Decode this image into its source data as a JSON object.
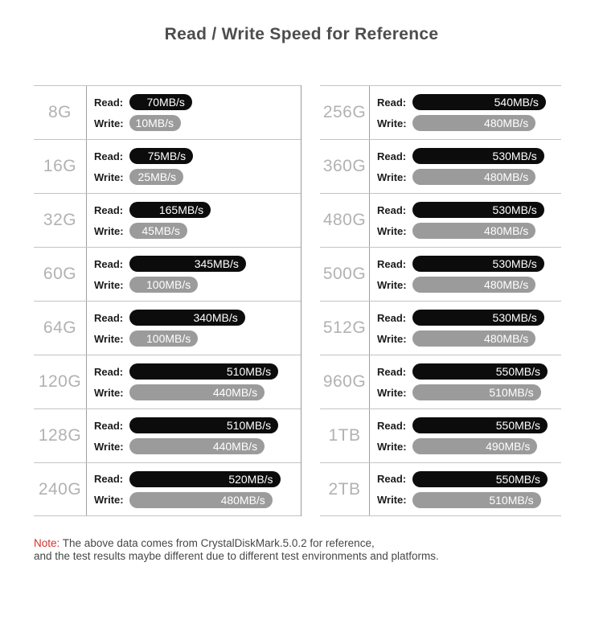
{
  "title": "Read / Write Speed for Reference",
  "read_label": "Read:",
  "write_label": "Write:",
  "unit": "MB/s",
  "note": {
    "prefix": "Note:",
    "line1": "The above data comes from CrystalDiskMark.5.0.2 for reference,",
    "line2": "and the test results maybe different due to different test environments and platforms."
  },
  "colors": {
    "title_text": "#4d4d4d",
    "capacity_text": "#b2b2b2",
    "line": "#c3c3c3",
    "divider": "#9f9f9f",
    "separator": "#9a9a9a",
    "read_bar": "#0c0c0c",
    "write_bar": "#9b9b9b",
    "note_red": "#d2322a",
    "note_text": "#474747"
  },
  "chart_data": {
    "type": "bar",
    "orientation": "horizontal",
    "title": "Read / Write Speed for Reference",
    "unit": "MB/s",
    "xlim": [
      0,
      550
    ],
    "categories": [
      "8G",
      "16G",
      "32G",
      "60G",
      "64G",
      "120G",
      "128G",
      "240G",
      "256G",
      "360G",
      "480G",
      "500G",
      "512G",
      "960G",
      "1TB",
      "2TB"
    ],
    "series": [
      {
        "name": "Read",
        "color": "#0c0c0c",
        "values": [
          70,
          75,
          165,
          345,
          340,
          510,
          510,
          520,
          540,
          530,
          530,
          530,
          530,
          550,
          550,
          550
        ]
      },
      {
        "name": "Write",
        "color": "#9b9b9b",
        "values": [
          10,
          25,
          45,
          100,
          100,
          440,
          440,
          480,
          480,
          480,
          480,
          480,
          480,
          510,
          490,
          510
        ]
      }
    ],
    "layout": {
      "columns_split": 8,
      "legend": "off",
      "grid": "off",
      "value_labels": "inside-bar-right"
    }
  }
}
